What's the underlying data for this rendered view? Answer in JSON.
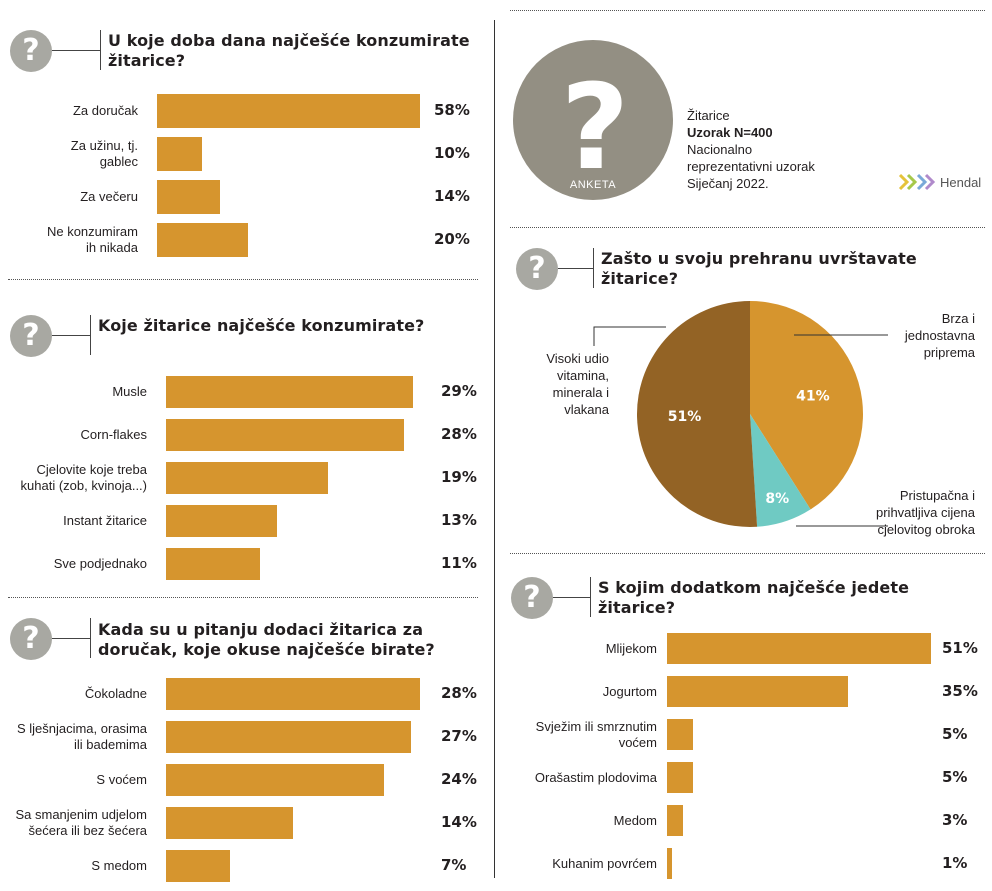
{
  "colors": {
    "bar": "#d6952e",
    "pie_dark": "#936325",
    "pie_orange": "#d6952e",
    "pie_teal": "#6fcac3",
    "icon_grey": "#a8a8a2",
    "big_icon": "#938f83"
  },
  "icons": {
    "question": "question-mark-icon",
    "logo": "hendal-logo-icon"
  },
  "survey": {
    "icon_label": "ANKETA",
    "topic": "Žitarice",
    "sample": "Uzorak N=400",
    "desc_lines": [
      "Nacionalno",
      "reprezentativni uzorak",
      "Siječanj 2022."
    ],
    "logo_text": "Hendal"
  },
  "chart_data": [
    {
      "type": "bar",
      "title": "U koje doba dana najčešće konzumirate žitarice?",
      "categories": [
        "Za doručak",
        "Za užinu, tj. gablec",
        "Za večeru",
        "Ne konzumiram ih nikada"
      ],
      "label_lines": [
        [
          "Za doručak"
        ],
        [
          "Za užinu, tj.",
          "gablec"
        ],
        [
          "Za večeru"
        ],
        [
          "Ne konzumiram",
          "ih nikada"
        ]
      ],
      "values": [
        58,
        10,
        14,
        20
      ],
      "value_labels": [
        "58%",
        "10%",
        "14%",
        "20%"
      ],
      "unit": "%"
    },
    {
      "type": "bar",
      "title": "Koje žitarice najčešće konzumirate?",
      "categories": [
        "Musle",
        "Corn-flakes",
        "Cjelovite koje treba kuhati (zob, kvinoja...)",
        "Instant žitarice",
        "Sve podjednako"
      ],
      "label_lines": [
        [
          "Musle"
        ],
        [
          "Corn-flakes"
        ],
        [
          "Cjelovite koje treba",
          "kuhati (zob, kvinoja...)"
        ],
        [
          "Instant žitarice"
        ],
        [
          "Sve podjednako"
        ]
      ],
      "values": [
        29,
        28,
        19,
        13,
        11
      ],
      "value_labels": [
        "29%",
        "28%",
        "19%",
        "13%",
        "11%"
      ],
      "unit": "%"
    },
    {
      "type": "bar",
      "title": "Kada su u pitanju dodaci žitarica za doručak, koje okuse najčešće birate?",
      "categories": [
        "Čokoladne",
        "S lješnjacima, orasima ili bademima",
        "S voćem",
        "Sa smanjenim udjelom šećera ili bez šećera",
        "S medom"
      ],
      "label_lines": [
        [
          "Čokoladne"
        ],
        [
          "S lješnjacima, orasima",
          "ili bademima"
        ],
        [
          "S voćem"
        ],
        [
          "Sa smanjenim udjelom",
          "šećera ili bez šećera"
        ],
        [
          "S medom"
        ]
      ],
      "values": [
        28,
        27,
        24,
        14,
        7
      ],
      "value_labels": [
        "28%",
        "27%",
        "24%",
        "14%",
        "7%"
      ],
      "unit": "%"
    },
    {
      "type": "pie",
      "title": "Zašto u svoju prehranu uvrštavate žitarice?",
      "categories": [
        "Brza i jednostavna priprema",
        "Pristupačna i prihvatljiva cijena cjelovitog obroka",
        "Visoki udio vitamina, minerala i vlakana"
      ],
      "label_lines": [
        [
          "Brza i",
          "jednostavna",
          "priprema"
        ],
        [
          "Pristupačna i",
          "prihvatljiva cijena",
          "cjelovitog obroka"
        ],
        [
          "Visoki udio",
          "vitamina,",
          "minerala i",
          "vlakana"
        ]
      ],
      "values": [
        41,
        8,
        51
      ],
      "value_labels": [
        "41%",
        "8%",
        "51%"
      ],
      "colors": [
        "#d6952e",
        "#6fcac3",
        "#936325"
      ],
      "unit": "%"
    },
    {
      "type": "bar",
      "title": "S kojim dodatkom najčešće jedete žitarice?",
      "categories": [
        "Mlijekom",
        "Jogurtom",
        "Svježim ili smrznutim voćem",
        "Orašastim plodovima",
        "Medom",
        "Kuhanim povrćem"
      ],
      "label_lines": [
        [
          "Mlijekom"
        ],
        [
          "Jogurtom"
        ],
        [
          "Svježim ili smrznutim",
          "voćem"
        ],
        [
          "Orašastim plodovima"
        ],
        [
          "Medom"
        ],
        [
          "Kuhanim povrćem"
        ]
      ],
      "values": [
        51,
        35,
        5,
        5,
        3,
        1
      ],
      "value_labels": [
        "51%",
        "35%",
        "5%",
        "5%",
        "3%",
        "1%"
      ],
      "unit": "%"
    }
  ]
}
